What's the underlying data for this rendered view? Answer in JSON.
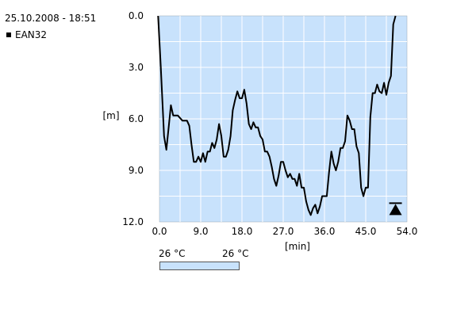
{
  "header": {
    "timestamp": "25.10.2008 - 18:51"
  },
  "legend": {
    "entry": "EAN32"
  },
  "temperature_bar": {
    "left_label": "26 °C",
    "right_label": "26 °C",
    "color": "#c8e2fc"
  },
  "colors": {
    "plot_bg": "#c8e2fc",
    "grid": "#ffffff",
    "line": "#000000"
  },
  "chart_data": {
    "type": "line",
    "xlabel": "[min]",
    "ylabel": "[m]",
    "xlim": [
      0,
      54
    ],
    "ylim": [
      0,
      12
    ],
    "y_inverted": true,
    "x_ticks": [
      "0.0",
      "9.0",
      "18.0",
      "27.0",
      "36.0",
      "45.0",
      "54.0"
    ],
    "y_ticks": [
      "0.0",
      "3.0",
      "6.0",
      "9.0",
      "12.0"
    ],
    "grid": true,
    "marker": {
      "type": "ascent-triangle",
      "x": 51.5,
      "y": 11.6
    },
    "series": [
      {
        "name": "EAN32",
        "x": [
          -0.3,
          0.3,
          1.0,
          1.5,
          2.0,
          2.5,
          3.0,
          3.5,
          4.0,
          5.0,
          6.0,
          6.5,
          7.0,
          7.5,
          8.0,
          8.5,
          9.0,
          9.5,
          10.0,
          10.5,
          11.0,
          11.5,
          12.0,
          12.5,
          13.0,
          13.5,
          14.0,
          14.5,
          15.0,
          15.5,
          16.0,
          16.5,
          17.0,
          17.5,
          18.0,
          18.5,
          19.0,
          19.5,
          20.0,
          20.5,
          21.0,
          21.5,
          22.0,
          22.5,
          23.0,
          23.5,
          24.0,
          24.5,
          25.0,
          25.5,
          26.0,
          26.5,
          27.0,
          27.5,
          28.0,
          28.5,
          29.0,
          29.5,
          30.0,
          30.5,
          31.0,
          31.5,
          32.0,
          32.5,
          33.0,
          33.5,
          34.0,
          34.5,
          35.0,
          35.5,
          36.0,
          36.5,
          37.0,
          37.5,
          38.0,
          38.5,
          39.0,
          39.5,
          40.0,
          40.5,
          41.0,
          41.5,
          42.0,
          42.5,
          43.0,
          43.5,
          44.0,
          44.5,
          45.0,
          45.5,
          46.0,
          46.5,
          47.0,
          47.5,
          48.0,
          48.5,
          49.0,
          49.5,
          50.0,
          50.5,
          51.0,
          51.5
        ],
        "y": [
          0.0,
          3.0,
          7.0,
          7.8,
          6.5,
          5.2,
          5.8,
          5.8,
          5.8,
          6.1,
          6.1,
          6.4,
          7.5,
          8.5,
          8.5,
          8.2,
          8.5,
          8.0,
          8.5,
          7.9,
          7.9,
          7.4,
          7.7,
          7.2,
          6.3,
          7.0,
          8.2,
          8.2,
          7.8,
          7.0,
          5.5,
          4.9,
          4.4,
          4.8,
          4.8,
          4.3,
          5.1,
          6.3,
          6.6,
          6.2,
          6.5,
          6.5,
          7.0,
          7.2,
          7.9,
          7.9,
          8.2,
          8.8,
          9.5,
          9.9,
          9.3,
          8.5,
          8.5,
          9.0,
          9.4,
          9.2,
          9.5,
          9.5,
          9.9,
          9.2,
          10.0,
          10.0,
          10.8,
          11.3,
          11.6,
          11.2,
          11.0,
          11.5,
          11.1,
          10.5,
          10.5,
          10.5,
          9.1,
          7.9,
          8.6,
          9.0,
          8.5,
          7.7,
          7.7,
          7.3,
          5.8,
          6.1,
          6.6,
          6.6,
          7.6,
          8.0,
          10.0,
          10.5,
          10.0,
          10.0,
          5.9,
          4.5,
          4.5,
          4.0,
          4.4,
          4.5,
          3.9,
          4.6,
          3.9,
          3.5,
          0.5,
          0.0
        ]
      }
    ]
  }
}
